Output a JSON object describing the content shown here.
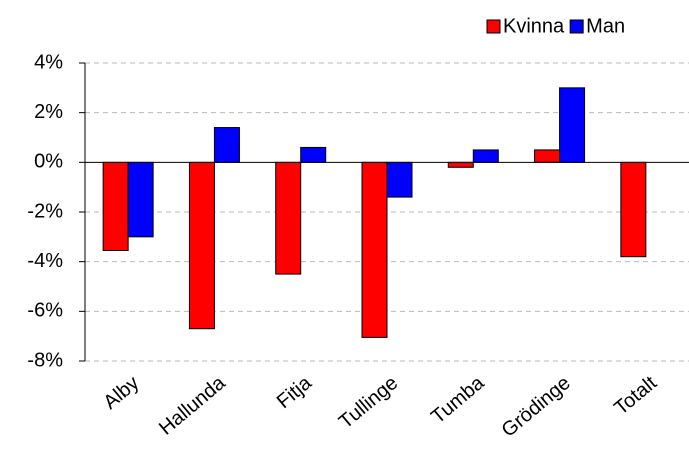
{
  "chart_data": {
    "type": "bar",
    "categories": [
      "Alby",
      "Hallunda",
      "Fitja",
      "Tullinge",
      "Tumba",
      "Grödinge",
      "Totalt"
    ],
    "series": [
      {
        "name": "Kvinna",
        "color": "#ff0000",
        "values": [
          -3.55,
          -6.7,
          -4.5,
          -7.05,
          -0.2,
          0.5,
          -3.8
        ]
      },
      {
        "name": "Man",
        "color": "#0000ff",
        "values": [
          -3.0,
          1.4,
          0.6,
          -1.4,
          0.5,
          3.0,
          null
        ]
      }
    ],
    "ylim": [
      -8,
      4
    ],
    "yticks": [
      {
        "value": -8,
        "label": "-8%"
      },
      {
        "value": -6,
        "label": "-6%"
      },
      {
        "value": -4,
        "label": "-4%"
      },
      {
        "value": -2,
        "label": "-2%"
      },
      {
        "value": 0,
        "label": "0%"
      },
      {
        "value": 2,
        "label": "2%"
      },
      {
        "value": 4,
        "label": "4%"
      }
    ],
    "grid": true,
    "legend": "top-right"
  }
}
